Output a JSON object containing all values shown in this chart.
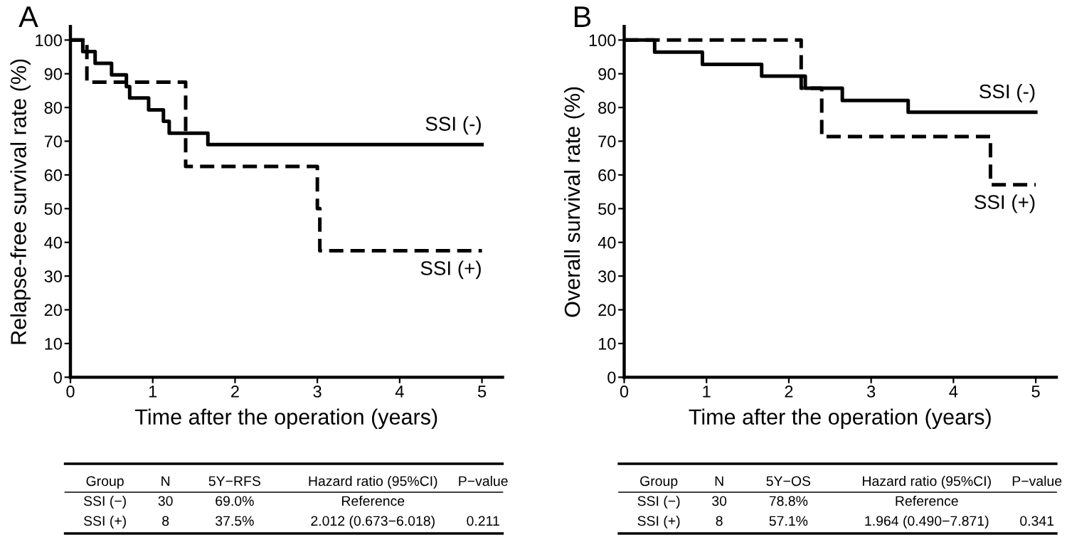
{
  "chart_data": [
    {
      "type": "step",
      "title": "A",
      "xlabel": "Time after the operation (years)",
      "ylabel": "Relapse-free survival rate (%)",
      "xlim": [
        0,
        5.25
      ],
      "ylim": [
        0,
        104
      ],
      "xticks": [
        0,
        1,
        2,
        3,
        4,
        5
      ],
      "yticks": [
        0,
        10,
        20,
        30,
        40,
        50,
        60,
        70,
        80,
        90,
        100
      ],
      "grid": false,
      "legend": false,
      "marker": "none",
      "series": [
        {
          "name": "SSI (-)",
          "color": "#000000",
          "line_style": "solid",
          "x": [
            0,
            0.15,
            0.3,
            0.5,
            0.68,
            0.72,
            0.95,
            1.13,
            1.2,
            1.67,
            5
          ],
          "values": [
            100,
            96.6,
            93.1,
            89.7,
            86.2,
            82.8,
            79.3,
            75.9,
            72.4,
            69.0,
            69.0
          ]
        },
        {
          "name": "SSI (+)",
          "color": "#000000",
          "line_style": "dashed",
          "x": [
            0,
            0.2,
            1.4,
            3.0,
            3.03,
            5
          ],
          "values": [
            100,
            87.5,
            62.5,
            50,
            37.5,
            37.5
          ]
        }
      ],
      "annotations": [
        "Group",
        "N",
        "5Y−RFS",
        "Hazard ratio (95%CI)",
        "P−value",
        "SSI (−)",
        "30",
        "69.0%",
        "Reference",
        "SSI (+)",
        "8",
        "37.5%",
        "2.012 (0.673−6.018)",
        "0.211"
      ]
    },
    {
      "type": "step",
      "title": "B",
      "xlabel": "Time after the operation (years)",
      "ylabel": "Overall survival rate (%)",
      "xlim": [
        0,
        5.25
      ],
      "ylim": [
        0,
        104
      ],
      "xticks": [
        0,
        1,
        2,
        3,
        4,
        5
      ],
      "yticks": [
        0,
        10,
        20,
        30,
        40,
        50,
        60,
        70,
        80,
        90,
        100
      ],
      "grid": false,
      "legend": false,
      "marker": "none",
      "series": [
        {
          "name": "SSI (-)",
          "color": "#000000",
          "line_style": "solid",
          "x": [
            0,
            0.37,
            0.95,
            1.67,
            2.2,
            2.65,
            3.45,
            5
          ],
          "values": [
            100,
            96.4,
            92.8,
            89.3,
            85.7,
            82.1,
            78.6,
            78.6
          ]
        },
        {
          "name": "SSI (+)",
          "color": "#000000",
          "line_style": "dashed",
          "x": [
            0,
            2.15,
            2.4,
            4.45,
            5
          ],
          "values": [
            100,
            85.7,
            71.4,
            57.1,
            57.1
          ]
        }
      ],
      "annotations": [
        "Group",
        "N",
        "5Y−OS",
        "Hazard ratio (95%CI)",
        "P−value",
        "SSI (−)",
        "30",
        "78.8%",
        "Reference",
        "SSI (+)",
        "8",
        "57.1%",
        "1.964 (0.490−7.871)",
        "0.341"
      ]
    }
  ]
}
